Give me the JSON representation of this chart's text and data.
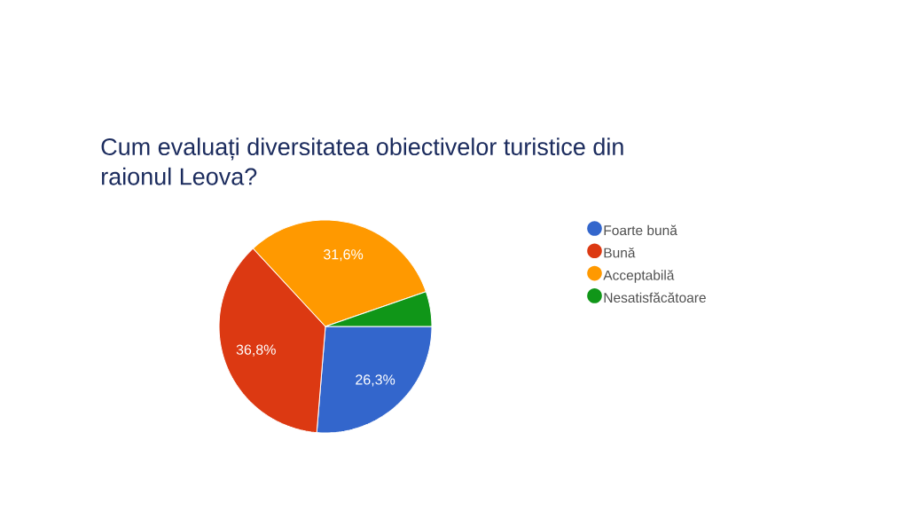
{
  "chart_data": {
    "type": "pie",
    "title": "Cum evaluați diversitatea obiectivelor turistice din raionul Leova?",
    "categories": [
      "Foarte bună",
      "Bună",
      "Acceptabilă",
      "Nesatisfăcătoare"
    ],
    "values": [
      26.3,
      36.8,
      31.6,
      5.3
    ],
    "colors": [
      "#3366cc",
      "#dc3912",
      "#ff9900",
      "#109618"
    ],
    "value_labels": [
      "26,3%",
      "36,8%",
      "31,6%",
      null
    ],
    "legend": "right"
  }
}
